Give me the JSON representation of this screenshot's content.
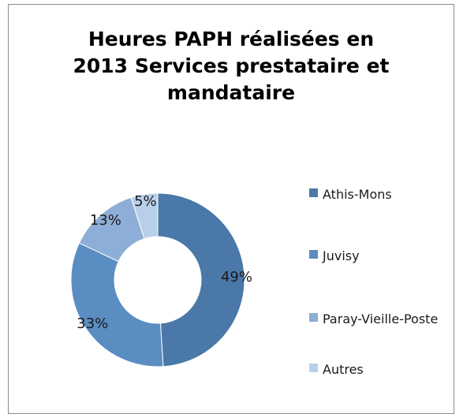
{
  "chart_data": {
    "type": "donut",
    "title": "Heures PAPH réalisées en 2013",
    "subtitle": "Services prestataire et mandataire",
    "categories": [
      "Athis-Mons",
      "Juvisy",
      "Paray-Vieille-Poste",
      "Autres"
    ],
    "values": [
      49,
      33,
      13,
      5
    ],
    "value_labels": [
      "49%",
      "33%",
      "13%",
      "5%"
    ],
    "colors": [
      "#4a78a8",
      "#5a8dc2",
      "#8daed6",
      "#b9cfe9"
    ],
    "legend": "right"
  }
}
